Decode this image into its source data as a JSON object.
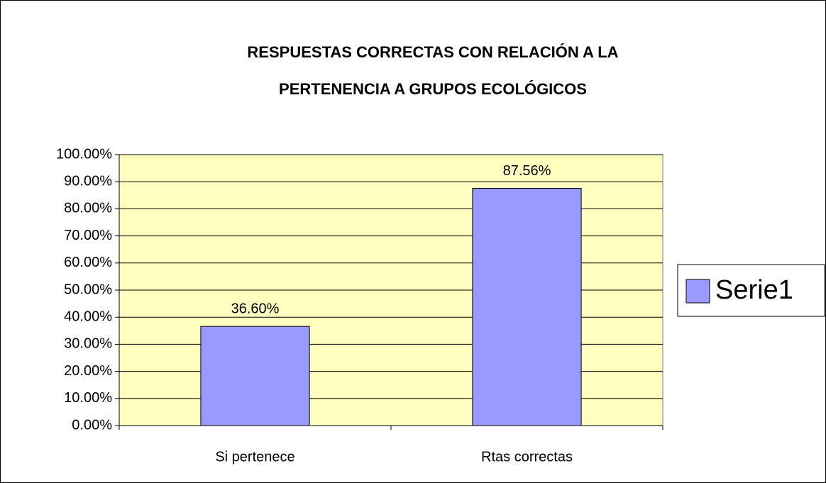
{
  "chart_data": {
    "type": "bar",
    "title": [
      "RESPUESTAS CORRECTAS CON RELACIÓN  A LA",
      "PERTENENCIA A GRUPOS ECOLÓGICOS"
    ],
    "categories": [
      "Si pertenece",
      "Rtas correctas"
    ],
    "series": [
      {
        "name": "Serie1",
        "color": "#9999ff",
        "values": [
          36.6,
          87.56
        ],
        "value_labels": [
          "36.60%",
          "87.56%"
        ]
      }
    ],
    "ylim": [
      0,
      100
    ],
    "yticks": [
      {
        "value": 0,
        "label": "0.00%"
      },
      {
        "value": 10,
        "label": "10.00%"
      },
      {
        "value": 20,
        "label": "20.00%"
      },
      {
        "value": 30,
        "label": "30.00%"
      },
      {
        "value": 40,
        "label": "40.00%"
      },
      {
        "value": 50,
        "label": "50.00%"
      },
      {
        "value": 60,
        "label": "60.00%"
      },
      {
        "value": 70,
        "label": "70.00%"
      },
      {
        "value": 80,
        "label": "80.00%"
      },
      {
        "value": 90,
        "label": "90.00%"
      },
      {
        "value": 100,
        "label": "100.00%"
      }
    ],
    "grid": true,
    "legend": "right",
    "plot_background": "#ffffc0"
  }
}
